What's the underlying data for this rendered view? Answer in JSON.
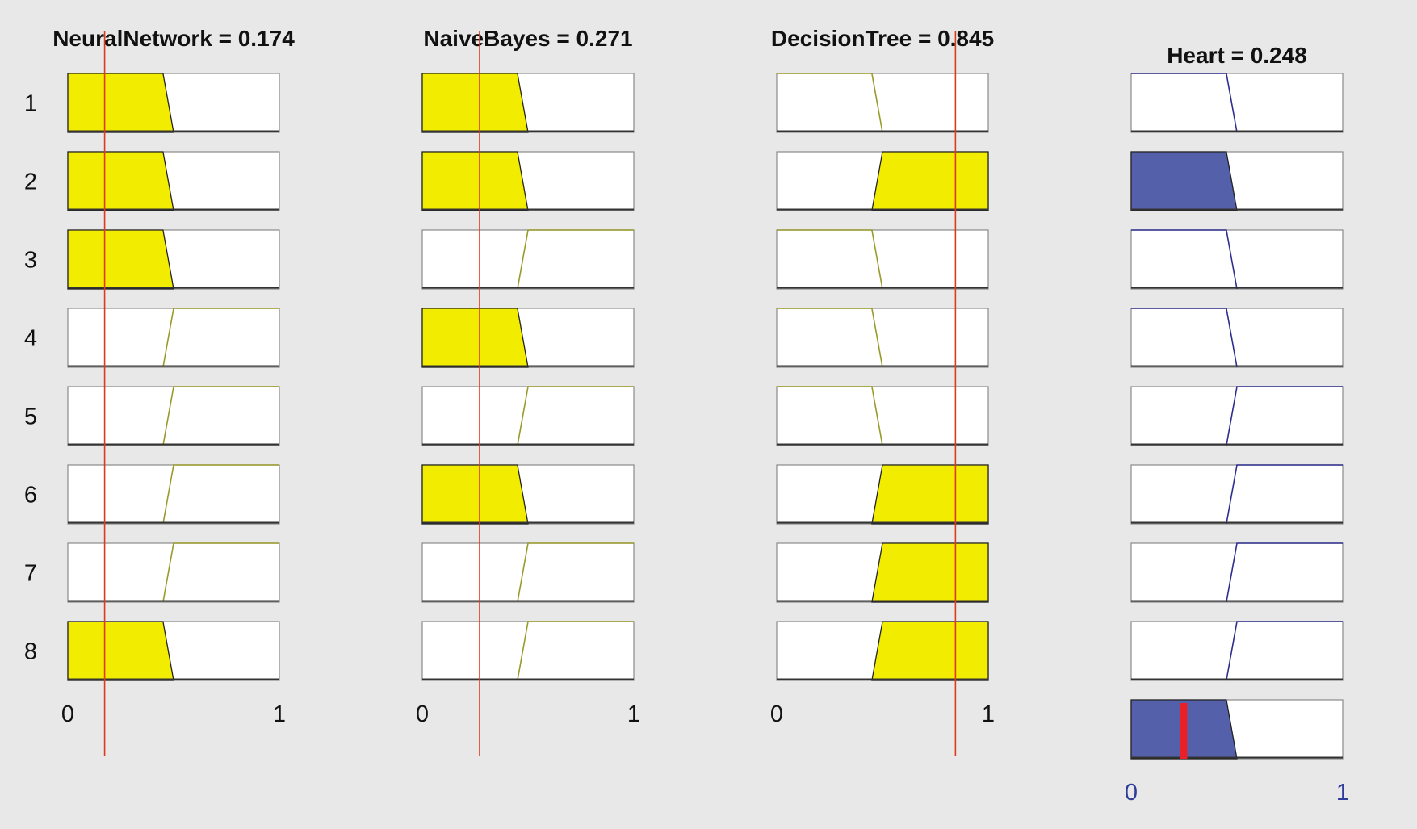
{
  "chart_data": {
    "type": "fuzzy-rule-viewer",
    "x_range": [
      0,
      1
    ],
    "rule_labels": [
      "1",
      "2",
      "3",
      "4",
      "5",
      "6",
      "7",
      "8"
    ],
    "inputs": [
      {
        "title": "NeuralNetwork = 0.174",
        "value": 0.174,
        "tick_min": "0",
        "tick_max": "1",
        "rules": [
          "low",
          "low",
          "low",
          "high",
          "high",
          "high",
          "high",
          "low"
        ],
        "active": [
          true,
          true,
          true,
          false,
          false,
          false,
          false,
          true
        ]
      },
      {
        "title": "NaiveBayes = 0.271",
        "value": 0.271,
        "tick_min": "0",
        "tick_max": "1",
        "rules": [
          "low",
          "low",
          "high",
          "low",
          "high",
          "low",
          "high",
          "high"
        ],
        "active": [
          true,
          true,
          false,
          true,
          false,
          true,
          false,
          false
        ]
      },
      {
        "title": "DecisionTree = 0.845",
        "value": 0.845,
        "tick_min": "0",
        "tick_max": "1",
        "rules": [
          "low",
          "high",
          "low",
          "low",
          "low",
          "high",
          "high",
          "high"
        ],
        "active": [
          false,
          true,
          false,
          false,
          false,
          true,
          true,
          true
        ]
      }
    ],
    "output": {
      "title": "Heart = 0.248",
      "value": 0.248,
      "tick_min": "0",
      "tick_max": "1",
      "rules": [
        "low",
        "low",
        "low",
        "low",
        "high",
        "high",
        "high",
        "high"
      ],
      "active": [
        false,
        true,
        false,
        false,
        false,
        false,
        false,
        false
      ],
      "aggregate": "low"
    },
    "membership_functions": {
      "low": [
        [
          0,
          1
        ],
        [
          0.45,
          1
        ],
        [
          0.5,
          0
        ]
      ],
      "high": [
        [
          0.45,
          0
        ],
        [
          0.5,
          1
        ],
        [
          1,
          1
        ]
      ]
    },
    "colors": {
      "background": "#e8e8e8",
      "input_fill": "#f2ec00",
      "input_outline": "#9a9a2a",
      "output_fill": "#5560ab",
      "output_outline": "#2e2e8e",
      "value_line": "#e03a1e",
      "output_marker": "#e8202a",
      "output_tick_text": "#2f3c9a"
    }
  }
}
